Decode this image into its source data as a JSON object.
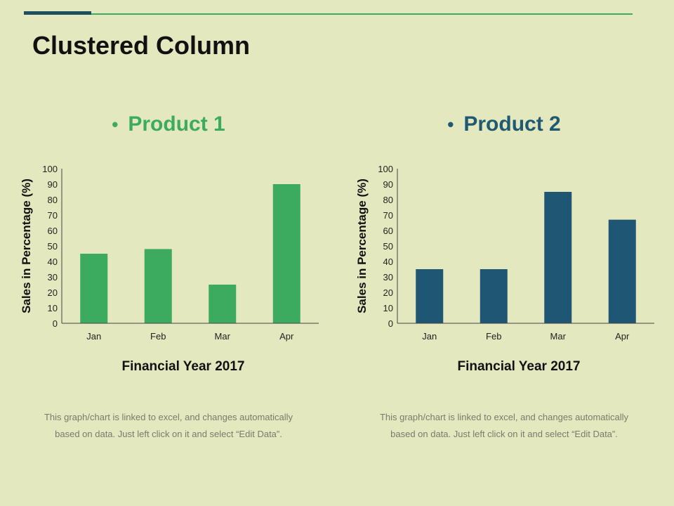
{
  "slide": {
    "title": "Clustered Column",
    "accent_dark": "#1f4e61",
    "accent_green": "#3dab5f",
    "background": "#e4e8bf"
  },
  "chart_data": [
    {
      "type": "bar",
      "title": "Product 1",
      "title_color": "#3dab5f",
      "bar_color": "#3dab5f",
      "categories": [
        "Jan",
        "Feb",
        "Mar",
        "Apr"
      ],
      "values": [
        45,
        48,
        25,
        90
      ],
      "xlabel": "Financial Year 2017",
      "ylabel": "Sales in Percentage (%)",
      "ylim": [
        0,
        100
      ],
      "yticks": [
        "0",
        "10",
        "20",
        "30",
        "40",
        "50",
        "60",
        "70",
        "80",
        "90",
        "100"
      ],
      "grid": false,
      "footnote_line1": "This graph/chart is linked to excel,  and changes automatically",
      "footnote_line2": "based on data. Just left click on it and select “Edit Data”."
    },
    {
      "type": "bar",
      "title": "Product 2",
      "title_color": "#1f5a72",
      "bar_color": "#1f5673",
      "categories": [
        "Jan",
        "Feb",
        "Mar",
        "Apr"
      ],
      "values": [
        35,
        35,
        85,
        67
      ],
      "xlabel": "Financial Year 2017",
      "ylabel": "Sales in Percentage (%)",
      "ylim": [
        0,
        100
      ],
      "yticks": [
        "0",
        "10",
        "20",
        "30",
        "40",
        "50",
        "60",
        "70",
        "80",
        "90",
        "100"
      ],
      "grid": false,
      "footnote_line1": "This graph/chart is linked to excel,  and changes automatically",
      "footnote_line2": "based on data. Just left click on it and select “Edit Data”."
    }
  ]
}
